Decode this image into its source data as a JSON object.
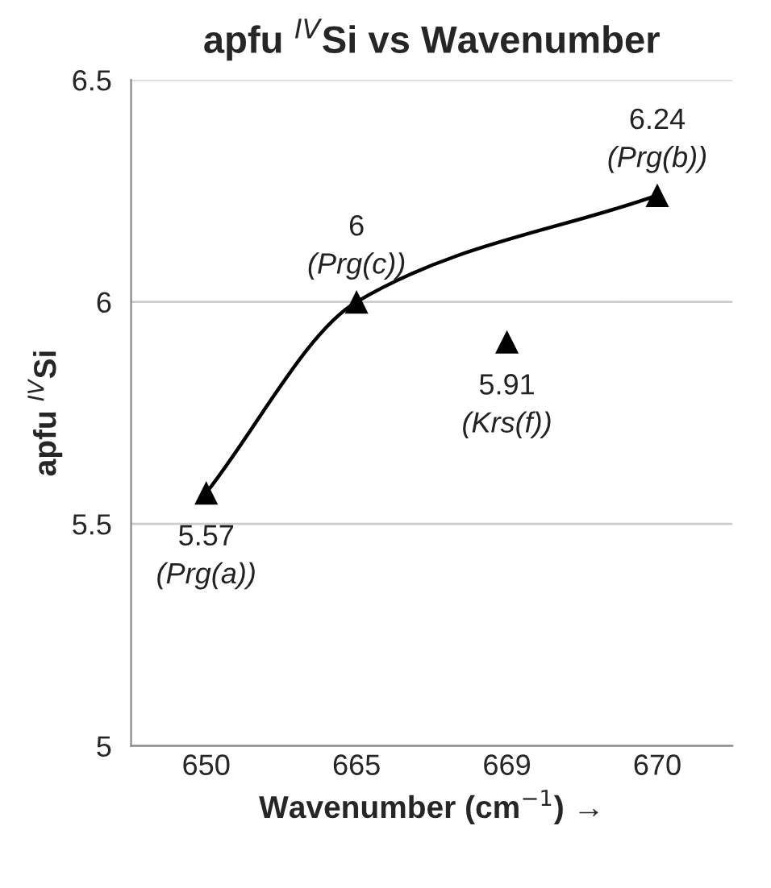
{
  "chart_data": {
    "type": "scatter",
    "title": "apfu $^{IV}$Si vs Wavenumber",
    "xlabel": "Wavenumber (cm$^{−1}$) →",
    "ylabel": "apfu $^{IV}$Si",
    "categories": [
      "650",
      "665",
      "669",
      "670"
    ],
    "series": [
      {
        "color": "#000000",
        "marker": "triangle",
        "values": [
          5.57,
          6,
          5.91,
          6.24
        ],
        "value_labels": [
          "5.57\n(Prg(a))",
          "6\n(Prg(c))",
          "5.91\n(Krs(f))",
          "6.24\n(Prg(b))"
        ]
      },
      {
        "type": "line",
        "color": "#000000",
        "marker": "none",
        "line_style": "solid",
        "x": [
          "650",
          "665",
          "670"
        ],
        "values": [
          5.57,
          6,
          6.24
        ]
      }
    ],
    "ylim": [
      5,
      6.5
    ],
    "yticks": [
      5,
      5.5,
      6,
      6.5
    ],
    "grid": "y",
    "legend": false
  }
}
